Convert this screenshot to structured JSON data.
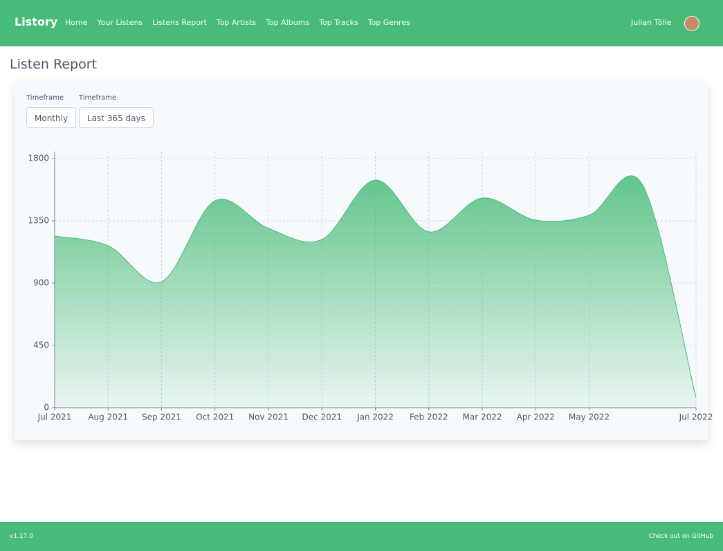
{
  "nav": {
    "brand": "Listory",
    "links": [
      "Home",
      "Your Listens",
      "Listens Report",
      "Top Artists",
      "Top Albums",
      "Top Tracks",
      "Top Genres"
    ],
    "user": "Julian Tölle"
  },
  "page": {
    "title": "Listen Report"
  },
  "controls": [
    {
      "label": "Timeframe",
      "value": "Monthly"
    },
    {
      "label": "Timeframe",
      "value": "Last 365 days"
    }
  ],
  "chart_data": {
    "type": "area",
    "categories": [
      "Jul 2021",
      "Aug 2021",
      "Sep 2021",
      "Oct 2021",
      "Nov 2021",
      "Dec 2021",
      "Jan 2022",
      "Feb 2022",
      "Mar 2022",
      "Apr 2022",
      "May 2022",
      null,
      "Jul 2022"
    ],
    "values": [
      1240,
      1170,
      910,
      1495,
      1295,
      1215,
      1645,
      1270,
      1515,
      1355,
      1390,
      1610,
      70
    ],
    "color": "#48bb78",
    "ylim": [
      0,
      1800
    ],
    "yticks": [
      0,
      450,
      900,
      1350,
      1800
    ],
    "grid": true
  },
  "footer": {
    "version": "v1.17.0",
    "link": "Check out on GitHub"
  }
}
